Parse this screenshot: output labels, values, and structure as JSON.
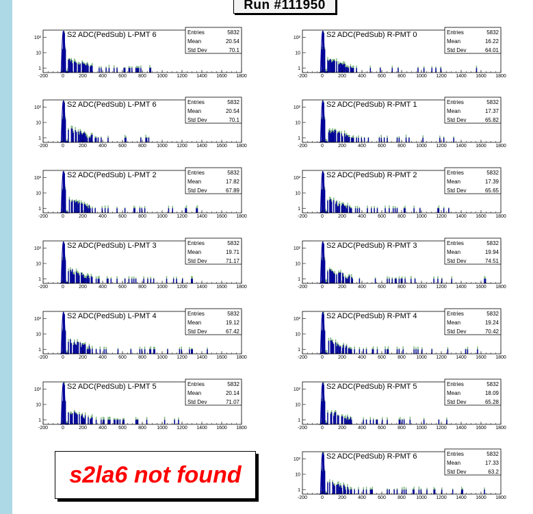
{
  "run_title": "Run #111950",
  "not_found_text": "s2la6 not found",
  "colors": {
    "fill_dark": "#000099",
    "fill_green": "#7fb77f",
    "page_bg": "#add8e6"
  },
  "chart_data": [
    {
      "type": "histogram",
      "title": "S2 ADC(PedSub) L-PMT  6",
      "stats": {
        "Entries": "5832",
        "Mean": "20.54",
        "Std Dev": "70.1"
      },
      "xlim": [
        -200,
        1800
      ],
      "xticks": [
        -200,
        0,
        200,
        400,
        600,
        800,
        1000,
        1200,
        1400,
        1600,
        1800
      ],
      "yscale": "log",
      "yticks": [
        "1",
        "10",
        "10²"
      ],
      "tail_max": 900,
      "spread": 0.5
    },
    {
      "type": "histogram",
      "title": "S2 ADC(PedSub) R-PMT  0",
      "stats": {
        "Entries": "5832",
        "Mean": "16.22",
        "Std Dev": "64.01"
      },
      "xlim": [
        -200,
        1800
      ],
      "xticks": [
        -200,
        0,
        200,
        400,
        600,
        800,
        1000,
        1200,
        1400,
        1600,
        1800
      ],
      "yscale": "log",
      "yticks": [
        "1",
        "10",
        "10²"
      ],
      "tail_max": 1600,
      "spread": 0.3
    },
    {
      "type": "histogram",
      "title": "S2 ADC(PedSub) L-PMT  6",
      "stats": {
        "Entries": "5832",
        "Mean": "20.54",
        "Std Dev": "70.1"
      },
      "xlim": [
        -200,
        1800
      ],
      "xticks": [
        -200,
        0,
        200,
        400,
        600,
        800,
        1000,
        1200,
        1400,
        1600,
        1800
      ],
      "yscale": "log",
      "yticks": [
        "1",
        "10",
        "10²"
      ],
      "tail_max": 900,
      "spread": 0.5
    },
    {
      "type": "histogram",
      "title": "S2 ADC(PedSub) R-PMT  1",
      "stats": {
        "Entries": "5832",
        "Mean": "17.37",
        "Std Dev": "65.82"
      },
      "xlim": [
        -200,
        1800
      ],
      "xticks": [
        -200,
        0,
        200,
        400,
        600,
        800,
        1000,
        1200,
        1400,
        1600,
        1800
      ],
      "yscale": "log",
      "yticks": [
        "1",
        "10",
        "10²"
      ],
      "tail_max": 1400,
      "spread": 0.35
    },
    {
      "type": "histogram",
      "title": "S2 ADC(PedSub) L-PMT  2",
      "stats": {
        "Entries": "5832",
        "Mean": "17.82",
        "Std Dev": "67.89"
      },
      "xlim": [
        -200,
        1800
      ],
      "xticks": [
        -200,
        0,
        200,
        400,
        600,
        800,
        1000,
        1200,
        1400,
        1600,
        1800
      ],
      "yscale": "log",
      "yticks": [
        "1",
        "10",
        "10²"
      ],
      "tail_max": 1450,
      "spread": 0.35
    },
    {
      "type": "histogram",
      "title": "S2 ADC(PedSub) R-PMT  2",
      "stats": {
        "Entries": "5832",
        "Mean": "17.39",
        "Std Dev": "65.65"
      },
      "xlim": [
        -200,
        1800
      ],
      "xticks": [
        -200,
        0,
        200,
        400,
        600,
        800,
        1000,
        1200,
        1400,
        1600,
        1800
      ],
      "yscale": "log",
      "yticks": [
        "1",
        "10",
        "10²"
      ],
      "tail_max": 1300,
      "spread": 0.3
    },
    {
      "type": "histogram",
      "title": "S2 ADC(PedSub) L-PMT  3",
      "stats": {
        "Entries": "5832",
        "Mean": "19.71",
        "Std Dev": "71.17"
      },
      "xlim": [
        -200,
        1800
      ],
      "xticks": [
        -200,
        0,
        200,
        400,
        600,
        800,
        1000,
        1200,
        1400,
        1600,
        1800
      ],
      "yscale": "log",
      "yticks": [
        "1",
        "10",
        "10²"
      ],
      "tail_max": 1300,
      "spread": 0.45
    },
    {
      "type": "histogram",
      "title": "S2 ADC(PedSub) R-PMT  3",
      "stats": {
        "Entries": "5832",
        "Mean": "19.94",
        "Std Dev": "74.51"
      },
      "xlim": [
        -200,
        1800
      ],
      "xticks": [
        -200,
        0,
        200,
        400,
        600,
        800,
        1000,
        1200,
        1400,
        1600,
        1800
      ],
      "yscale": "log",
      "yticks": [
        "1",
        "10",
        "10²"
      ],
      "tail_max": 1750,
      "spread": 0.45
    },
    {
      "type": "histogram",
      "title": "S2 ADC(PedSub) L-PMT  4",
      "stats": {
        "Entries": "5832",
        "Mean": "19.12",
        "Std Dev": "67.42"
      },
      "xlim": [
        -200,
        1800
      ],
      "xticks": [
        -200,
        0,
        200,
        400,
        600,
        800,
        1000,
        1200,
        1400,
        1600,
        1800
      ],
      "yscale": "log",
      "yticks": [
        "1",
        "10",
        "10²"
      ],
      "tail_max": 1480,
      "spread": 0.4
    },
    {
      "type": "histogram",
      "title": "S2 ADC(PedSub) R-PMT  4",
      "stats": {
        "Entries": "5832",
        "Mean": "19.24",
        "Std Dev": "70.42"
      },
      "xlim": [
        -200,
        1800
      ],
      "xticks": [
        -200,
        0,
        200,
        400,
        600,
        800,
        1000,
        1200,
        1400,
        1600,
        1800
      ],
      "yscale": "log",
      "yticks": [
        "1",
        "10",
        "10²"
      ],
      "tail_max": 1750,
      "spread": 0.4
    },
    {
      "type": "histogram",
      "title": "S2 ADC(PedSub) L-PMT  5",
      "stats": {
        "Entries": "5832",
        "Mean": "20.14",
        "Std Dev": "71.07"
      },
      "xlim": [
        -200,
        1800
      ],
      "xticks": [
        -200,
        0,
        200,
        400,
        600,
        800,
        1000,
        1200,
        1400,
        1600,
        1800
      ],
      "yscale": "log",
      "yticks": [
        "1",
        "10",
        "10²"
      ],
      "tail_max": 1250,
      "spread": 0.45
    },
    {
      "type": "histogram",
      "title": "S2 ADC(PedSub) R-PMT  5",
      "stats": {
        "Entries": "5832",
        "Mean": "18.09",
        "Std Dev": "65.28"
      },
      "xlim": [
        -200,
        1800
      ],
      "xticks": [
        -200,
        0,
        200,
        400,
        600,
        800,
        1000,
        1200,
        1400,
        1600,
        1800
      ],
      "yscale": "log",
      "yticks": [
        "1",
        "10",
        "10²"
      ],
      "tail_max": 1250,
      "spread": 0.35
    },
    {
      "type": "histogram",
      "title": "S2 ADC(PedSub) R-PMT  6",
      "stats": {
        "Entries": "5832",
        "Mean": "17.33",
        "Std Dev": "63.2"
      },
      "xlim": [
        -200,
        1800
      ],
      "xticks": [
        -200,
        0,
        200,
        400,
        600,
        800,
        1000,
        1200,
        1400,
        1600,
        1800
      ],
      "yscale": "log",
      "yticks": [
        "1",
        "10",
        "10²"
      ],
      "tail_max": 1650,
      "spread": 0.3
    }
  ]
}
